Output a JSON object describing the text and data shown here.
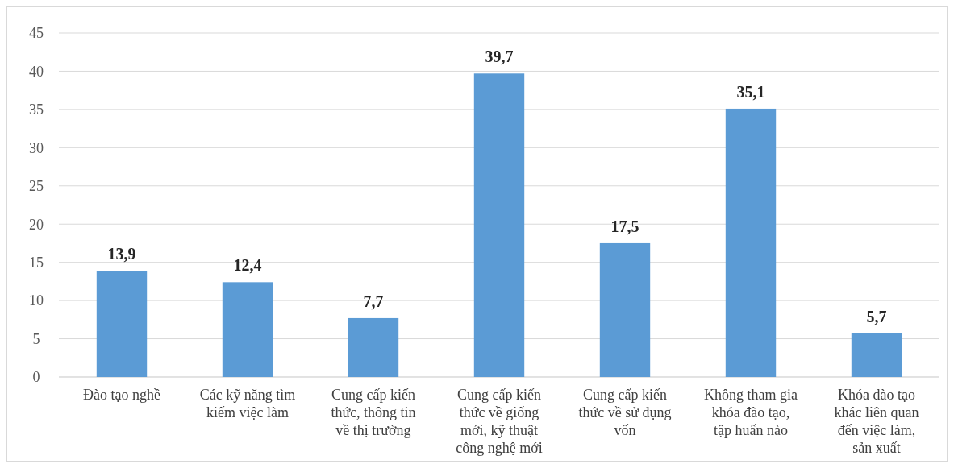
{
  "chart_data": {
    "type": "bar",
    "categories": [
      "Đào tạo nghề",
      "Các kỹ năng tìm kiếm việc làm",
      "Cung cấp kiến thức, thông tin về thị trường",
      "Cung cấp kiến thức về giống mới, kỹ thuật công nghệ mới",
      "Cung cấp kiến thức về sử dụng vốn",
      "Không tham gia khóa đào tạo, tập huấn nào",
      "Khóa đào tạo khác liên quan đến việc làm, sản xuất"
    ],
    "values": [
      13.9,
      12.4,
      7.7,
      39.7,
      17.5,
      35.1,
      5.7
    ],
    "value_labels": [
      "13,9",
      "12,4",
      "7,7",
      "39,7",
      "17,5",
      "35,1",
      "5,7"
    ],
    "color": "#5b9bd5",
    "ylim": [
      0,
      45
    ],
    "yticks": [
      0,
      5,
      10,
      15,
      20,
      25,
      30,
      35,
      40,
      45
    ],
    "grid": "y"
  }
}
